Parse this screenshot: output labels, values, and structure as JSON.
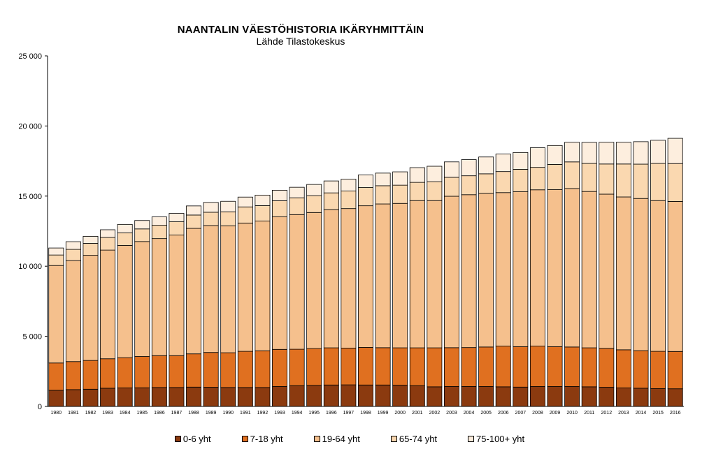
{
  "chart_data": {
    "type": "bar",
    "stacked": true,
    "title": "NAANTALIN VÄESTÖHISTORIA IKÄRYHMITTÄIN",
    "subtitle": "Lähde Tilastokeskus",
    "xlabel": "",
    "ylabel": "",
    "ylim": [
      0,
      25000
    ],
    "yticks": [
      0,
      5000,
      10000,
      15000,
      20000,
      25000
    ],
    "ytick_labels": [
      "0",
      "5 000",
      "10 000",
      "15 000",
      "20 000",
      "25 000"
    ],
    "grid": false,
    "legend_position": "bottom",
    "categories": [
      "1980",
      "1981",
      "1982",
      "1983",
      "1984",
      "1985",
      "1986",
      "1987",
      "1988",
      "1989",
      "1990",
      "1991",
      "1992",
      "1993",
      "1994",
      "1995",
      "1996",
      "1997",
      "1998",
      "1999",
      "2000",
      "2001",
      "2002",
      "2003",
      "2004",
      "2005",
      "2006",
      "2007",
      "2008",
      "2009",
      "2010",
      "2011",
      "2012",
      "2013",
      "2014",
      "2015",
      "2016"
    ],
    "series": [
      {
        "name": "0-6 yht",
        "color": "#8b3a0f",
        "values": [
          1150,
          1200,
          1230,
          1300,
          1320,
          1330,
          1350,
          1350,
          1380,
          1370,
          1350,
          1350,
          1350,
          1420,
          1480,
          1500,
          1530,
          1540,
          1530,
          1530,
          1520,
          1480,
          1400,
          1420,
          1420,
          1420,
          1400,
          1380,
          1420,
          1420,
          1420,
          1400,
          1370,
          1320,
          1300,
          1270,
          1260
        ]
      },
      {
        "name": "7-18 yht",
        "color": "#e07020",
        "values": [
          1950,
          2000,
          2050,
          2100,
          2160,
          2230,
          2270,
          2270,
          2370,
          2480,
          2480,
          2580,
          2620,
          2650,
          2600,
          2630,
          2650,
          2620,
          2680,
          2660,
          2660,
          2700,
          2780,
          2770,
          2780,
          2820,
          2900,
          2880,
          2880,
          2840,
          2820,
          2780,
          2770,
          2720,
          2680,
          2660,
          2660
        ]
      },
      {
        "name": "19-64 yht",
        "color": "#f5c08d",
        "values": [
          6950,
          7200,
          7500,
          7750,
          8000,
          8200,
          8350,
          8600,
          8950,
          9050,
          9050,
          9150,
          9250,
          9450,
          9600,
          9700,
          9850,
          9950,
          10100,
          10250,
          10300,
          10500,
          10500,
          10800,
          10900,
          10950,
          10950,
          11050,
          11150,
          11200,
          11300,
          11150,
          11000,
          10900,
          10850,
          10750,
          10700
        ]
      },
      {
        "name": "65-74 yht",
        "color": "#fad8b0",
        "values": [
          750,
          800,
          850,
          900,
          900,
          900,
          950,
          950,
          950,
          950,
          1000,
          1150,
          1100,
          1150,
          1200,
          1200,
          1200,
          1250,
          1300,
          1300,
          1300,
          1300,
          1350,
          1350,
          1350,
          1400,
          1500,
          1600,
          1600,
          1800,
          1900,
          2000,
          2150,
          2350,
          2450,
          2650,
          2700
        ]
      },
      {
        "name": "75-100+ yht",
        "color": "#fdeede",
        "values": [
          500,
          550,
          500,
          550,
          600,
          600,
          600,
          600,
          650,
          700,
          750,
          700,
          750,
          750,
          750,
          800,
          850,
          850,
          900,
          900,
          950,
          1050,
          1100,
          1100,
          1150,
          1200,
          1250,
          1200,
          1400,
          1350,
          1400,
          1500,
          1550,
          1550,
          1600,
          1650,
          1800
        ]
      }
    ]
  }
}
